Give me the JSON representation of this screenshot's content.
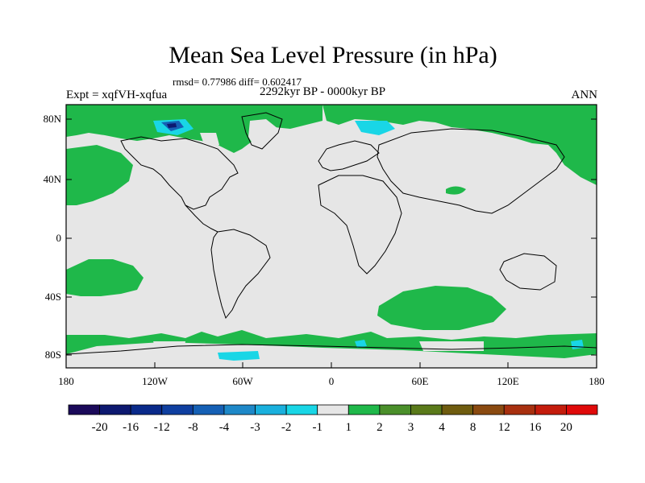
{
  "header": {
    "title": "Mean Sea Level Pressure (in hPa)",
    "stats": "rmsd= 0.77986 diff= 0.602417",
    "period": "2292kyr BP - 0000kyr BP",
    "experiment": "Expt = xqfVH-xqfua",
    "season": "ANN"
  },
  "axes": {
    "lat_labels": [
      "80N",
      "40N",
      "0",
      "40S",
      "80S"
    ],
    "lon_labels": [
      "180",
      "120W",
      "60W",
      "0",
      "60E",
      "120E",
      "180"
    ]
  },
  "colorbar": {
    "labels": [
      "-20",
      "-16",
      "-12",
      "-8",
      "-4",
      "-3",
      "-2",
      "-1",
      "1",
      "2",
      "3",
      "4",
      "8",
      "12",
      "16",
      "20"
    ],
    "colors": [
      "#1b0a5a",
      "#0d1970",
      "#0a2a8a",
      "#0f3fa0",
      "#1560b5",
      "#1e88c8",
      "#1ab0dd",
      "#19d6e6",
      "#e6e6e6",
      "#1fb84a",
      "#4a8f2a",
      "#5a7a1a",
      "#6f5c0f",
      "#8a4a10",
      "#a8300f",
      "#c41c0c",
      "#e00a0a"
    ]
  },
  "colors": {
    "background": "#e6e6e6",
    "positive": "#1fb84a",
    "negative_light": "#19d6e6",
    "negative_dark": "#0d1970",
    "coast": "#000000"
  }
}
